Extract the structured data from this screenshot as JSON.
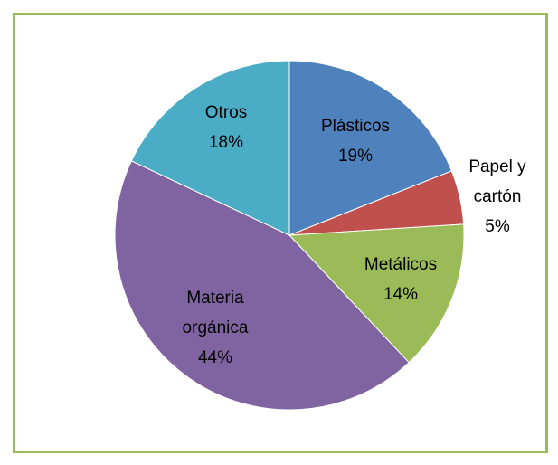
{
  "chart_data": {
    "type": "pie",
    "categories": [
      "Plásticos",
      "Papel y cartón",
      "Metálicos",
      "Materia orgánica",
      "Otros"
    ],
    "values": [
      19,
      5,
      14,
      44,
      18
    ],
    "value_labels": [
      "19%",
      "5%",
      "14%",
      "44%",
      "18%"
    ],
    "colors": [
      "#4f81bd",
      "#c0504d",
      "#9bbb59",
      "#8064a2",
      "#4bacc6"
    ],
    "border_color": "#9bbb59"
  }
}
